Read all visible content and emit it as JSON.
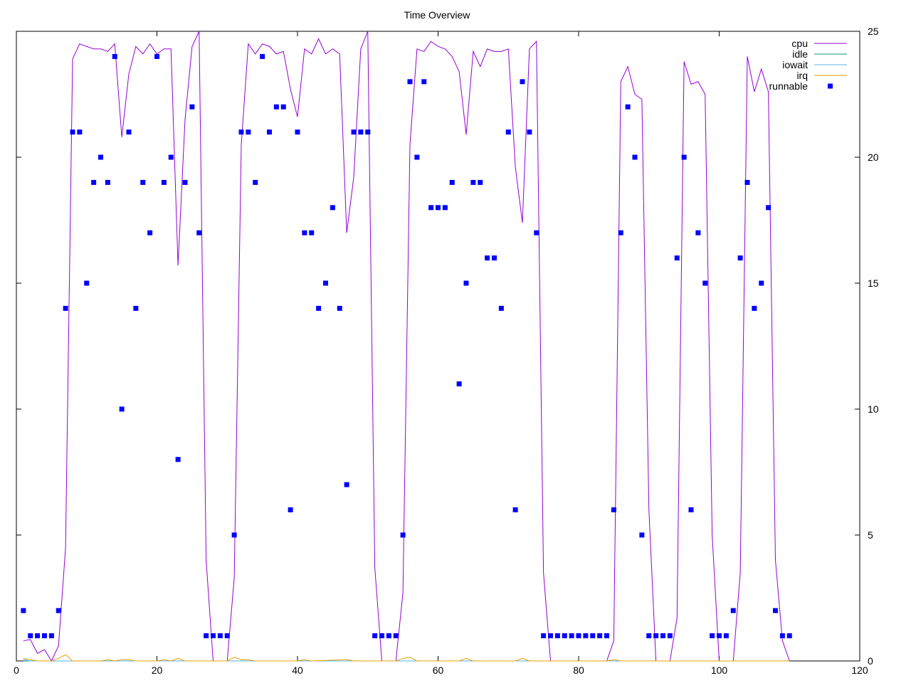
{
  "chart_data": {
    "type": "line",
    "title": "Time Overview",
    "xlabel": "",
    "ylabel": "",
    "xlim": [
      0,
      120
    ],
    "ylim": [
      0,
      25
    ],
    "x_ticks": [
      0,
      20,
      40,
      60,
      80,
      100,
      120
    ],
    "y_ticks": [
      0,
      5,
      10,
      15,
      20,
      25
    ],
    "y_axis_side": "right",
    "grid": false,
    "legend_position": "top-right",
    "series": [
      {
        "name": "cpu",
        "style": "line",
        "color": "#9400d3",
        "points": [
          [
            1,
            0.8
          ],
          [
            2,
            0.85
          ],
          [
            3,
            0.3
          ],
          [
            4,
            0.45
          ],
          [
            5,
            0
          ],
          [
            6,
            0.6
          ],
          [
            7,
            4.5
          ],
          [
            8,
            23.9
          ],
          [
            9,
            24.5
          ],
          [
            10,
            24.4
          ],
          [
            11,
            24.3
          ],
          [
            12,
            24.3
          ],
          [
            13,
            24.2
          ],
          [
            14,
            24.5
          ],
          [
            15,
            20.8
          ],
          [
            16,
            23.3
          ],
          [
            17,
            24.4
          ],
          [
            18,
            24.1
          ],
          [
            19,
            24.5
          ],
          [
            20,
            24.1
          ],
          [
            21,
            24.3
          ],
          [
            22,
            24.3
          ],
          [
            23,
            15.7
          ],
          [
            24,
            21.5
          ],
          [
            25,
            24.4
          ],
          [
            26,
            25
          ],
          [
            27,
            4
          ],
          [
            28,
            0
          ],
          [
            29,
            0
          ],
          [
            30,
            0
          ],
          [
            31,
            3.3
          ],
          [
            32,
            20.5
          ],
          [
            33,
            24.5
          ],
          [
            34,
            24.1
          ],
          [
            35,
            24.5
          ],
          [
            36,
            24.4
          ],
          [
            37,
            24.1
          ],
          [
            38,
            24.2
          ],
          [
            39,
            22.7
          ],
          [
            40,
            21.6
          ],
          [
            41,
            24.3
          ],
          [
            42,
            24.1
          ],
          [
            43,
            24.7
          ],
          [
            44,
            24.1
          ],
          [
            45,
            24.3
          ],
          [
            46,
            24.1
          ],
          [
            47,
            17
          ],
          [
            48,
            19.2
          ],
          [
            49,
            24.3
          ],
          [
            50,
            25
          ],
          [
            51,
            3.7
          ],
          [
            52,
            0
          ],
          [
            53,
            0
          ],
          [
            54,
            0
          ],
          [
            55,
            2.7
          ],
          [
            56,
            20.5
          ],
          [
            57,
            24.3
          ],
          [
            58,
            24.2
          ],
          [
            59,
            24.6
          ],
          [
            60,
            24.4
          ],
          [
            61,
            24.3
          ],
          [
            62,
            24.0
          ],
          [
            63,
            23.4
          ],
          [
            64,
            20.9
          ],
          [
            65,
            24.2
          ],
          [
            66,
            23.6
          ],
          [
            67,
            24.3
          ],
          [
            68,
            24.2
          ],
          [
            69,
            24.2
          ],
          [
            70,
            24.3
          ],
          [
            71,
            19.6
          ],
          [
            72,
            17.4
          ],
          [
            73,
            24.3
          ],
          [
            74,
            24.6
          ],
          [
            75,
            3.5
          ],
          [
            76,
            0
          ],
          [
            77,
            0
          ],
          [
            78,
            0
          ],
          [
            79,
            0
          ],
          [
            80,
            0
          ],
          [
            81,
            0
          ],
          [
            82,
            0
          ],
          [
            83,
            0
          ],
          [
            84,
            0
          ],
          [
            85,
            0.8
          ],
          [
            86,
            23
          ],
          [
            87,
            23.6
          ],
          [
            88,
            22.5
          ],
          [
            89,
            22.3
          ],
          [
            90,
            6
          ],
          [
            91,
            0
          ],
          [
            92,
            0
          ],
          [
            93,
            0
          ],
          [
            94,
            1.7
          ],
          [
            95,
            23.8
          ],
          [
            96,
            22.9
          ],
          [
            97,
            23
          ],
          [
            98,
            22.5
          ],
          [
            99,
            5
          ],
          [
            100,
            0
          ],
          [
            101,
            0
          ],
          [
            102,
            0
          ],
          [
            103,
            3.5
          ],
          [
            104,
            24
          ],
          [
            105,
            22.6
          ],
          [
            106,
            23.5
          ],
          [
            107,
            22.6
          ],
          [
            108,
            4
          ],
          [
            109,
            0.8
          ],
          [
            110,
            0
          ]
        ]
      },
      {
        "name": "idle",
        "style": "line",
        "color": "#009e73",
        "points": [
          [
            1,
            0
          ],
          [
            110,
            0
          ]
        ]
      },
      {
        "name": "iowait",
        "style": "line",
        "color": "#56b4e9",
        "points": [
          [
            1,
            0.05
          ],
          [
            2,
            0
          ],
          [
            110,
            0
          ]
        ]
      },
      {
        "name": "irq",
        "style": "line",
        "color": "#e69f00",
        "points": [
          [
            1,
            0.1
          ],
          [
            2,
            0.05
          ],
          [
            3,
            0
          ],
          [
            5,
            0
          ],
          [
            6,
            0.1
          ],
          [
            7,
            0.25
          ],
          [
            8,
            0
          ],
          [
            12,
            0
          ],
          [
            13,
            0.05
          ],
          [
            14,
            0
          ],
          [
            15,
            0.05
          ],
          [
            16,
            0.05
          ],
          [
            17,
            0
          ],
          [
            20,
            0
          ],
          [
            21,
            0.05
          ],
          [
            22,
            0
          ],
          [
            23,
            0.1
          ],
          [
            24,
            0
          ],
          [
            30,
            0
          ],
          [
            31,
            0.15
          ],
          [
            32,
            0.05
          ],
          [
            33,
            0.05
          ],
          [
            34,
            0
          ],
          [
            40,
            0
          ],
          [
            41,
            0.05
          ],
          [
            42,
            0
          ],
          [
            47,
            0.05
          ],
          [
            48,
            0
          ],
          [
            54,
            0
          ],
          [
            55,
            0.1
          ],
          [
            56,
            0.15
          ],
          [
            57,
            0
          ],
          [
            63,
            0
          ],
          [
            64,
            0.1
          ],
          [
            65,
            0
          ],
          [
            71,
            0
          ],
          [
            72,
            0.1
          ],
          [
            73,
            0
          ],
          [
            84,
            0
          ],
          [
            85,
            0.05
          ],
          [
            86,
            0
          ],
          [
            110,
            0
          ]
        ]
      },
      {
        "name": "runnable",
        "style": "points",
        "color": "#0000ff",
        "points": [
          [
            1,
            2
          ],
          [
            2,
            1
          ],
          [
            3,
            1
          ],
          [
            4,
            1
          ],
          [
            5,
            1
          ],
          [
            6,
            2
          ],
          [
            7,
            14
          ],
          [
            8,
            21
          ],
          [
            9,
            21
          ],
          [
            10,
            15
          ],
          [
            11,
            19
          ],
          [
            12,
            20
          ],
          [
            13,
            19
          ],
          [
            14,
            24
          ],
          [
            15,
            10
          ],
          [
            16,
            21
          ],
          [
            17,
            14
          ],
          [
            18,
            19
          ],
          [
            19,
            17
          ],
          [
            20,
            24
          ],
          [
            21,
            19
          ],
          [
            22,
            20
          ],
          [
            23,
            8
          ],
          [
            24,
            19
          ],
          [
            25,
            22
          ],
          [
            26,
            17
          ],
          [
            27,
            1
          ],
          [
            28,
            1
          ],
          [
            29,
            1
          ],
          [
            30,
            1
          ],
          [
            31,
            5
          ],
          [
            32,
            21
          ],
          [
            33,
            21
          ],
          [
            34,
            19
          ],
          [
            35,
            24
          ],
          [
            36,
            21
          ],
          [
            37,
            22
          ],
          [
            38,
            22
          ],
          [
            39,
            6
          ],
          [
            40,
            21
          ],
          [
            41,
            17
          ],
          [
            42,
            17
          ],
          [
            43,
            14
          ],
          [
            44,
            15
          ],
          [
            45,
            18
          ],
          [
            46,
            14
          ],
          [
            47,
            7
          ],
          [
            48,
            21
          ],
          [
            49,
            21
          ],
          [
            50,
            21
          ],
          [
            51,
            1
          ],
          [
            52,
            1
          ],
          [
            53,
            1
          ],
          [
            54,
            1
          ],
          [
            55,
            5
          ],
          [
            56,
            23
          ],
          [
            57,
            20
          ],
          [
            58,
            23
          ],
          [
            59,
            18
          ],
          [
            60,
            18
          ],
          [
            61,
            18
          ],
          [
            62,
            19
          ],
          [
            63,
            11
          ],
          [
            64,
            15
          ],
          [
            65,
            19
          ],
          [
            66,
            19
          ],
          [
            67,
            16
          ],
          [
            68,
            16
          ],
          [
            69,
            14
          ],
          [
            70,
            21
          ],
          [
            71,
            6
          ],
          [
            72,
            23
          ],
          [
            73,
            21
          ],
          [
            74,
            17
          ],
          [
            75,
            1
          ],
          [
            76,
            1
          ],
          [
            77,
            1
          ],
          [
            78,
            1
          ],
          [
            79,
            1
          ],
          [
            80,
            1
          ],
          [
            81,
            1
          ],
          [
            82,
            1
          ],
          [
            83,
            1
          ],
          [
            84,
            1
          ],
          [
            85,
            6
          ],
          [
            86,
            17
          ],
          [
            87,
            22
          ],
          [
            88,
            20
          ],
          [
            89,
            5
          ],
          [
            90,
            1
          ],
          [
            91,
            1
          ],
          [
            92,
            1
          ],
          [
            93,
            1
          ],
          [
            94,
            16
          ],
          [
            95,
            20
          ],
          [
            96,
            6
          ],
          [
            97,
            17
          ],
          [
            98,
            15
          ],
          [
            99,
            1
          ],
          [
            100,
            1
          ],
          [
            101,
            1
          ],
          [
            102,
            2
          ],
          [
            103,
            16
          ],
          [
            104,
            19
          ],
          [
            105,
            14
          ],
          [
            106,
            15
          ],
          [
            107,
            18
          ],
          [
            108,
            2
          ],
          [
            109,
            1
          ],
          [
            110,
            1
          ]
        ]
      }
    ]
  }
}
